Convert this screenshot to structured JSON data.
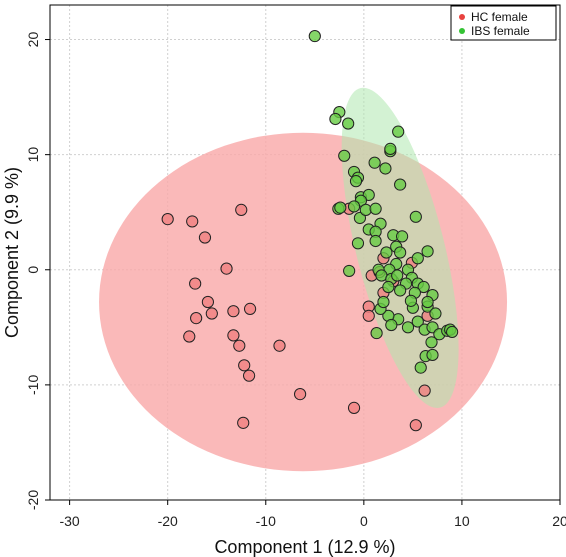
{
  "chart_data": {
    "type": "scatter",
    "xlabel": "Component 1 (12.9 %)",
    "ylabel": "Component 2 (9.9 %)",
    "xlim": [
      -32,
      20
    ],
    "ylim": [
      -20,
      23
    ],
    "xticks": [
      -30,
      -20,
      -10,
      0,
      10,
      20
    ],
    "yticks": [
      -20,
      -10,
      0,
      10,
      20
    ],
    "grid": true,
    "legend_position": "top-right",
    "series": [
      {
        "name": "HC female",
        "color": "#e8423f",
        "marker_fill": "#f08080",
        "ellipse": {
          "cx": -6.2,
          "cy": -2.8,
          "rx": 20.8,
          "ry": 14.7,
          "angle_deg": 0,
          "fill": "#f9a7a7"
        },
        "points": [
          [
            -20.0,
            4.4
          ],
          [
            -17.5,
            4.2
          ],
          [
            -16.2,
            2.8
          ],
          [
            -12.5,
            5.2
          ],
          [
            -14.0,
            0.1
          ],
          [
            -17.2,
            -1.2
          ],
          [
            -15.9,
            -2.8
          ],
          [
            -15.5,
            -3.8
          ],
          [
            -17.1,
            -4.2
          ],
          [
            -13.3,
            -3.6
          ],
          [
            -11.6,
            -3.4
          ],
          [
            -13.3,
            -5.7
          ],
          [
            -17.8,
            -5.8
          ],
          [
            -12.7,
            -6.6
          ],
          [
            -8.6,
            -6.6
          ],
          [
            -12.2,
            -8.3
          ],
          [
            -11.7,
            -9.2
          ],
          [
            -6.5,
            -10.8
          ],
          [
            -12.3,
            -13.3
          ],
          [
            -1.0,
            -12.0
          ],
          [
            5.3,
            -13.5
          ],
          [
            6.2,
            -10.5
          ],
          [
            0.5,
            -3.2
          ],
          [
            0.5,
            -4.0
          ],
          [
            2.0,
            -2.0
          ],
          [
            3.0,
            -1.0
          ],
          [
            2.0,
            1.0
          ],
          [
            4.9,
            0.6
          ],
          [
            6.5,
            -4.0
          ],
          [
            -1.5,
            5.3
          ],
          [
            0.8,
            -0.5
          ],
          [
            1.6,
            -0.2
          ]
        ]
      },
      {
        "name": "IBS female",
        "color": "#34c334",
        "marker_fill": "#66cc44",
        "ellipse": {
          "cx": 3.7,
          "cy": 1.9,
          "rx": 4.5,
          "ry": 14.3,
          "angle_deg": -14,
          "fill": "#aee8ae"
        },
        "points": [
          [
            -5.0,
            20.3
          ],
          [
            -2.5,
            13.7
          ],
          [
            -2.9,
            13.1
          ],
          [
            -1.6,
            12.7
          ],
          [
            3.5,
            12.0
          ],
          [
            -2.0,
            9.9
          ],
          [
            2.7,
            10.3
          ],
          [
            2.7,
            10.5
          ],
          [
            -1.0,
            8.5
          ],
          [
            1.1,
            9.3
          ],
          [
            -0.6,
            8.0
          ],
          [
            -0.8,
            7.7
          ],
          [
            2.2,
            8.8
          ],
          [
            3.7,
            7.4
          ],
          [
            -0.3,
            6.3
          ],
          [
            0.5,
            6.5
          ],
          [
            -0.3,
            6.0
          ],
          [
            -1.0,
            5.5
          ],
          [
            -2.6,
            5.3
          ],
          [
            -2.4,
            5.4
          ],
          [
            -0.4,
            4.5
          ],
          [
            0.2,
            5.2
          ],
          [
            1.2,
            5.3
          ],
          [
            5.3,
            4.6
          ],
          [
            0.5,
            3.5
          ],
          [
            1.7,
            4.0
          ],
          [
            1.2,
            3.3
          ],
          [
            3.0,
            3.0
          ],
          [
            3.3,
            2.0
          ],
          [
            -0.6,
            2.3
          ],
          [
            1.2,
            2.5
          ],
          [
            3.9,
            2.9
          ],
          [
            2.3,
            1.5
          ],
          [
            5.5,
            1.0
          ],
          [
            6.5,
            1.6
          ],
          [
            3.7,
            1.5
          ],
          [
            3.3,
            0.5
          ],
          [
            4.5,
            0.0
          ],
          [
            2.6,
            0.0
          ],
          [
            -1.5,
            -0.1
          ],
          [
            1.5,
            0.0
          ],
          [
            1.8,
            -0.5
          ],
          [
            2.8,
            -0.8
          ],
          [
            3.4,
            -0.5
          ],
          [
            4.9,
            -0.7
          ],
          [
            5.5,
            -1.2
          ],
          [
            6.1,
            -1.5
          ],
          [
            4.3,
            -1.2
          ],
          [
            3.7,
            -1.8
          ],
          [
            2.5,
            -1.5
          ],
          [
            5.2,
            -2.0
          ],
          [
            7.0,
            -2.2
          ],
          [
            5.0,
            -3.3
          ],
          [
            6.5,
            -3.2
          ],
          [
            4.8,
            -2.7
          ],
          [
            6.5,
            -2.8
          ],
          [
            7.3,
            -3.8
          ],
          [
            5.5,
            -4.5
          ],
          [
            3.5,
            -4.3
          ],
          [
            2.5,
            -4.0
          ],
          [
            2.8,
            -4.8
          ],
          [
            4.5,
            -5.0
          ],
          [
            6.2,
            -5.2
          ],
          [
            7.0,
            -5.0
          ],
          [
            7.7,
            -5.6
          ],
          [
            8.5,
            -5.3
          ],
          [
            8.8,
            -5.2
          ],
          [
            9.0,
            -5.4
          ],
          [
            1.3,
            -5.5
          ],
          [
            6.3,
            -7.5
          ],
          [
            7.0,
            -7.4
          ],
          [
            5.8,
            -8.5
          ],
          [
            6.9,
            -6.3
          ],
          [
            1.7,
            -3.4
          ],
          [
            2.0,
            -2.8
          ]
        ]
      }
    ]
  }
}
